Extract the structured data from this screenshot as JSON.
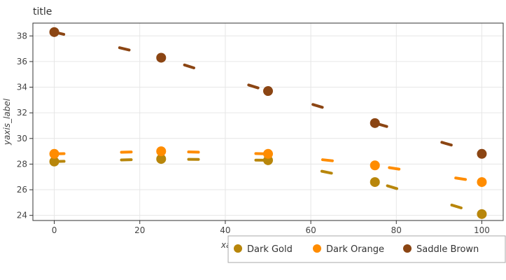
{
  "chart_data": {
    "type": "scatter",
    "title": "title",
    "xlabel": "xaxis_label",
    "ylabel": "yaxis_label",
    "xlim": [
      -5,
      105
    ],
    "ylim": [
      23.6,
      39
    ],
    "xticks": [
      0,
      20,
      40,
      60,
      80,
      100
    ],
    "yticks": [
      24,
      26,
      28,
      30,
      32,
      34,
      36,
      38
    ],
    "grid": true,
    "legend_position": "bottom-right",
    "series": [
      {
        "name": "Dark Gold",
        "color": "#B8860B",
        "x": [
          0,
          25,
          50,
          75,
          100
        ],
        "y": [
          28.2,
          28.4,
          28.3,
          26.6,
          24.1
        ]
      },
      {
        "name": "Dark Orange",
        "color": "#FF8C00",
        "x": [
          0,
          25,
          50,
          75,
          100
        ],
        "y": [
          28.8,
          29.0,
          28.8,
          27.9,
          26.6
        ]
      },
      {
        "name": "Saddle Brown",
        "color": "#8B4513",
        "x": [
          0,
          25,
          50,
          75,
          100
        ],
        "y": [
          38.3,
          36.3,
          33.7,
          31.2,
          28.8
        ]
      }
    ],
    "legend": [
      "Dark Gold",
      "Dark Orange",
      "Saddle Brown"
    ]
  }
}
